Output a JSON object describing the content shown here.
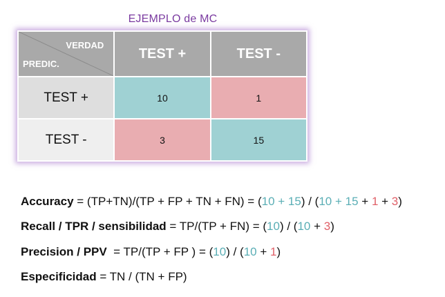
{
  "title": "EJEMPLO de MC",
  "matrix": {
    "corner_top": "VERDAD",
    "corner_bottom": "PREDIC.",
    "col_headers": [
      "TEST +",
      "TEST -"
    ],
    "row_headers": [
      "TEST +",
      "TEST -"
    ],
    "cells": [
      [
        "10",
        "1"
      ],
      [
        "3",
        "15"
      ]
    ]
  },
  "formulas": {
    "accuracy": {
      "name": "Accuracy",
      "expr": " = (TP+TN)/(TP + FP + TN + FN) = (",
      "tp": "10",
      "plus1": " + ",
      "tn": "15",
      "mid": ") / (",
      "tp2": "10",
      "plus2": " + ",
      "tn2": "15",
      "plus3": " + ",
      "fp": "1",
      "plus4": " + ",
      "fn": "3",
      "end": ")"
    },
    "recall": {
      "name": "Recall / TPR / sensibilidad",
      "expr": " = TP/(TP + FN) = (",
      "tp": "10",
      "mid": ") / (",
      "tp2": "10",
      "plus": " + ",
      "fn": "3",
      "end": ")"
    },
    "precision": {
      "name": "Precision / PPV",
      "expr": "  = TP/(TP + FP ) = (",
      "tp": "10",
      "mid": ") / (",
      "tp2": "10",
      "plus": " + ",
      "fp": "1",
      "end": ")"
    },
    "specificity": {
      "name": "Especificidad",
      "expr": " = TN / (TN + FP)"
    }
  },
  "colors": {
    "title": "#7a3aa0",
    "header_bg": "#a9a9a9",
    "teal": "#9fd1d3",
    "pink": "#e9adb1",
    "teal_text": "#5aaeb5",
    "red_text": "#e06068"
  }
}
